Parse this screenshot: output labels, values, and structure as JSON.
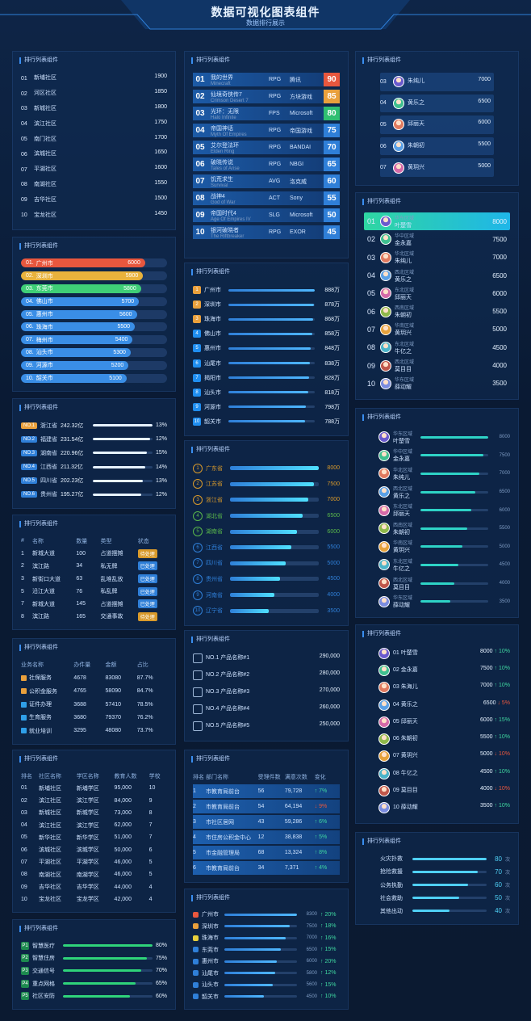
{
  "header": {
    "title": "数据可视化图表组件",
    "subtitle": "数据排行展示"
  },
  "panels": [
    {
      "kind": "rank_bar",
      "title": "排行列表组件",
      "color": "#2fd47a",
      "items": [
        {
          "rank": "01",
          "name": "新埔社区",
          "value": 1900
        },
        {
          "rank": "02",
          "name": "河区社区",
          "value": 1850
        },
        {
          "rank": "03",
          "name": "新城社区",
          "value": 1800
        },
        {
          "rank": "04",
          "name": "滨江社区",
          "value": 1750
        },
        {
          "rank": "05",
          "name": "南门社区",
          "value": 1700
        },
        {
          "rank": "06",
          "name": "滨城社区",
          "value": 1650
        },
        {
          "rank": "07",
          "name": "平湖社区",
          "value": 1600
        },
        {
          "rank": "08",
          "name": "南湖社区",
          "value": 1550
        },
        {
          "rank": "09",
          "name": "吉华社区",
          "value": 1500
        },
        {
          "rank": "10",
          "name": "宝龙社区",
          "value": 1450
        }
      ]
    },
    {
      "kind": "pill",
      "title": "排行列表组件",
      "colors": [
        "#e8573e",
        "#e9b23c",
        "#3fcf77",
        "#3a8ee6"
      ],
      "items": [
        {
          "rank": "01.",
          "name": "广州市",
          "value": 6000
        },
        {
          "rank": "02.",
          "name": "深圳市",
          "value": 5900
        },
        {
          "rank": "03.",
          "name": "东莞市",
          "value": 5800
        },
        {
          "rank": "04.",
          "name": "佛山市",
          "value": 5700
        },
        {
          "rank": "05.",
          "name": "惠州市",
          "value": 5600
        },
        {
          "rank": "06.",
          "name": "珠海市",
          "value": 5500
        },
        {
          "rank": "07.",
          "name": "梅州市",
          "value": 5400
        },
        {
          "rank": "08.",
          "name": "汕头市",
          "value": 5300
        },
        {
          "rank": "09.",
          "name": "河源市",
          "value": 5200
        },
        {
          "rank": "10.",
          "name": "韶关市",
          "value": 5100
        }
      ]
    },
    {
      "kind": "tag",
      "title": "排行列表组件",
      "colors": [
        "#e9a03c",
        "#2f7fd8"
      ],
      "items": [
        {
          "rank": "NO.1",
          "name": "浙江省",
          "value": 242.32,
          "value_label": "242.32亿",
          "share": "13%"
        },
        {
          "rank": "NO.2",
          "name": "福建省",
          "value": 231.54,
          "value_label": "231.54亿",
          "share": "12%"
        },
        {
          "rank": "NO.3",
          "name": "湖南省",
          "value": 220.96,
          "value_label": "220.96亿",
          "share": "15%"
        },
        {
          "rank": "NO.4",
          "name": "江西省",
          "value": 211.32,
          "value_label": "211.32亿",
          "share": "14%"
        },
        {
          "rank": "NO.5",
          "name": "四川省",
          "value": 202.23,
          "value_label": "202.23亿",
          "share": "13%"
        },
        {
          "rank": "NO.6",
          "name": "贵州省",
          "value": 195.27,
          "value_label": "195.27亿",
          "share": "12%"
        }
      ]
    },
    {
      "kind": "badge_table",
      "title": "排行列表组件",
      "headers": [
        "#",
        "名称",
        "数量",
        "类型",
        "状态"
      ],
      "rows": [
        [
          "1",
          "新城大道",
          "100",
          "占道摆摊",
          "待处理"
        ],
        [
          "2",
          "滨江路",
          "34",
          "私无牌",
          "已处理"
        ],
        [
          "3",
          "新街口大道",
          "63",
          "乱堆乱放",
          "已处理"
        ],
        [
          "5",
          "沿江大道",
          "76",
          "私乱牌",
          "已处理"
        ],
        [
          "7",
          "新城大道",
          "145",
          "占道摆摊",
          "已处理"
        ],
        [
          "8",
          "滨江路",
          "165",
          "交通事故",
          "待处理"
        ]
      ]
    },
    {
      "kind": "icon_table",
      "title": "排行列表组件",
      "headers": [
        "业务名称",
        "办件量",
        "金额",
        "占比"
      ],
      "rows": [
        [
          "社保服务",
          "4678",
          "83080",
          "87.7%"
        ],
        [
          "公积金服务",
          "4765",
          "58090",
          "84.7%"
        ],
        [
          "证件办理",
          "3688",
          "57410",
          "78.5%"
        ],
        [
          "生育服务",
          "3680",
          "79370",
          "76.2%"
        ],
        [
          "就业培训",
          "3295",
          "48080",
          "73.7%"
        ]
      ]
    },
    {
      "kind": "table",
      "title": "排行列表组件",
      "headers": [
        "排名",
        "社区名称",
        "学区名称",
        "教育人数",
        "学校"
      ],
      "rows": [
        [
          "01",
          "新埔社区",
          "新埔学区",
          "95,000",
          "10"
        ],
        [
          "02",
          "滨江社区",
          "滨江学区",
          "84,000",
          "9"
        ],
        [
          "03",
          "新城社区",
          "新城学区",
          "73,000",
          "8"
        ],
        [
          "04",
          "滨江社区",
          "滨江学区",
          "62,000",
          "7"
        ],
        [
          "05",
          "新华社区",
          "新华学区",
          "51,000",
          "7"
        ],
        [
          "06",
          "滨城社区",
          "滨城学区",
          "50,000",
          "6"
        ],
        [
          "07",
          "平湖社区",
          "平湖学区",
          "46,000",
          "5"
        ],
        [
          "08",
          "南湖社区",
          "南湖学区",
          "46,000",
          "5"
        ],
        [
          "09",
          "吉华社区",
          "吉华学区",
          "44,000",
          "4"
        ],
        [
          "10",
          "宝龙社区",
          "宝龙学区",
          "42,000",
          "4"
        ]
      ]
    },
    {
      "kind": "p_bar",
      "title": "排行列表组件",
      "color": "#2fd47a",
      "items": [
        {
          "rank": "P1",
          "name": "智慧医疗",
          "value": 80,
          "value_label": "80%"
        },
        {
          "rank": "P2",
          "name": "智慧住房",
          "value": 75,
          "value_label": "75%"
        },
        {
          "rank": "P3",
          "name": "交通信号",
          "value": 70,
          "value_label": "70%"
        },
        {
          "rank": "P4",
          "name": "重点网格",
          "value": 65,
          "value_label": "65%"
        },
        {
          "rank": "P5",
          "name": "社区安防",
          "value": 60,
          "value_label": "60%"
        }
      ]
    },
    {
      "kind": "game",
      "title": "排行列表组件",
      "colors": [
        "#e8573e",
        "#e9a03c",
        "#2fbf71",
        "#2f7fd8"
      ],
      "items": [
        {
          "rank": "01",
          "name": "我的世界",
          "sub": "Minecraft",
          "genre": "RPG",
          "maker": "腾讯",
          "value": 90
        },
        {
          "rank": "02",
          "name": "仙境奇侠传7",
          "sub": "Crimson Desert 7",
          "genre": "RPG",
          "maker": "方块游戏",
          "value": 85
        },
        {
          "rank": "03",
          "name": "光环：无限",
          "sub": "Halo Infinite",
          "genre": "FPS",
          "maker": "Microsoft",
          "value": 80
        },
        {
          "rank": "04",
          "name": "帝国神话",
          "sub": "Myth Of Empires",
          "genre": "RPG",
          "maker": "帝国游戏",
          "value": 75
        },
        {
          "rank": "05",
          "name": "艾尔登法环",
          "sub": "Elden Ring",
          "genre": "RPG",
          "maker": "BANDAI",
          "value": 70
        },
        {
          "rank": "06",
          "name": "破晓传说",
          "sub": "Tales of Arise",
          "genre": "RPG",
          "maker": "NBGI",
          "value": 65
        },
        {
          "rank": "07",
          "name": "饥荒求生",
          "sub": "Survival",
          "genre": "AVG",
          "maker": "洛克威",
          "value": 60
        },
        {
          "rank": "08",
          "name": "战神4",
          "sub": "God of War",
          "genre": "ACT",
          "maker": "Sony",
          "value": 55
        },
        {
          "rank": "09",
          "name": "帝国时代4",
          "sub": "Age Of Empires IV",
          "genre": "SLG",
          "maker": "Microsoft",
          "value": 50
        },
        {
          "rank": "10",
          "name": "银河破晓者",
          "sub": "The Riftbreaker",
          "genre": "RPG",
          "maker": "EXOR",
          "value": 45
        }
      ]
    },
    {
      "kind": "city_bar",
      "title": "排行列表组件",
      "colors": [
        "#e9a03c",
        "#1f8ef1"
      ],
      "items": [
        {
          "rank": "1",
          "name": "广州市",
          "value": 888,
          "value_label": "888万"
        },
        {
          "rank": "2",
          "name": "深圳市",
          "value": 878,
          "value_label": "878万"
        },
        {
          "rank": "3",
          "name": "珠海市",
          "value": 868,
          "value_label": "868万"
        },
        {
          "rank": "4",
          "name": "佛山市",
          "value": 858,
          "value_label": "858万"
        },
        {
          "rank": "5",
          "name": "惠州市",
          "value": 848,
          "value_label": "848万"
        },
        {
          "rank": "6",
          "name": "汕尾市",
          "value": 838,
          "value_label": "838万"
        },
        {
          "rank": "7",
          "name": "揭阳市",
          "value": 828,
          "value_label": "828万"
        },
        {
          "rank": "8",
          "name": "汕头市",
          "value": 818,
          "value_label": "818万"
        },
        {
          "rank": "9",
          "name": "河源市",
          "value": 798,
          "value_label": "798万"
        },
        {
          "rank": "10",
          "name": "韶关市",
          "value": 788,
          "value_label": "788万"
        }
      ]
    },
    {
      "kind": "circle_bar",
      "title": "排行列表组件",
      "colors": [
        "#d99a2b",
        "#5ab84b",
        "#2f7fd8"
      ],
      "items": [
        {
          "rank": "1",
          "name": "广东省",
          "value": 8000
        },
        {
          "rank": "2",
          "name": "江苏省",
          "value": 7500
        },
        {
          "rank": "3",
          "name": "浙江省",
          "value": 7000
        },
        {
          "rank": "4",
          "name": "湖北省",
          "value": 6500
        },
        {
          "rank": "5",
          "name": "湖南省",
          "value": 6000
        },
        {
          "rank": "6",
          "name": "江西省",
          "value": 5500
        },
        {
          "rank": "7",
          "name": "四川省",
          "value": 5000
        },
        {
          "rank": "8",
          "name": "贵州省",
          "value": 4500
        },
        {
          "rank": "9",
          "name": "河南省",
          "value": 4000
        },
        {
          "rank": "10",
          "name": "辽宁省",
          "value": 3500
        }
      ]
    },
    {
      "kind": "product",
      "title": "排行列表组件",
      "color": "#52e6b4",
      "items": [
        {
          "rank": "NO.1",
          "name": "产品名称#1",
          "value": 290000,
          "value_label": "290,000"
        },
        {
          "rank": "NO.2",
          "name": "产品名称#2",
          "value": 280000,
          "value_label": "280,000"
        },
        {
          "rank": "NO.3",
          "name": "产品名称#3",
          "value": 270000,
          "value_label": "270,000"
        },
        {
          "rank": "NO.4",
          "name": "产品名称#4",
          "value": 260000,
          "value_label": "260,000"
        },
        {
          "rank": "NO.5",
          "name": "产品名称#5",
          "value": 250000,
          "value_label": "250,000"
        }
      ]
    },
    {
      "kind": "strip_table",
      "title": "排行列表组件",
      "headers": [
        "排名",
        "部门名称",
        "受理件数",
        "满意次数",
        "变化"
      ],
      "rows": [
        [
          "1",
          "市教育局前台",
          "56",
          "79,728",
          "↑ 7%"
        ],
        [
          "2",
          "市教育局前台",
          "54",
          "64,194",
          "↓ 9%"
        ],
        [
          "3",
          "市社区居网",
          "43",
          "59,286",
          "↑ 6%"
        ],
        [
          "4",
          "市住房公积金中心",
          "12",
          "38,838",
          "↑ 5%"
        ],
        [
          "5",
          "市金融管理局",
          "68",
          "13,324",
          "↑ 8%"
        ],
        [
          "6",
          "市教育局前台",
          "34",
          "7,371",
          "↑ 4%"
        ]
      ]
    },
    {
      "kind": "change_bar",
      "title": "排行列表组件",
      "colors": [
        "#e8573e",
        "#e9a03c",
        "#e9d03c",
        "#2f7fd8"
      ],
      "items": [
        {
          "name": "广州市",
          "value": 8300,
          "change": "↑ 20%"
        },
        {
          "name": "深圳市",
          "value": 7500,
          "change": "↑ 18%"
        },
        {
          "name": "珠海市",
          "value": 7000,
          "change": "↑ 16%"
        },
        {
          "name": "东莞市",
          "value": 6500,
          "change": "↑ 15%"
        },
        {
          "name": "惠州市",
          "value": 6000,
          "change": "↑ 20%"
        },
        {
          "name": "汕尾市",
          "value": 5800,
          "change": "↑ 12%"
        },
        {
          "name": "汕头市",
          "value": 5600,
          "change": "↑ 15%"
        },
        {
          "name": "韶关市",
          "value": 4500,
          "change": "↑ 10%"
        }
      ]
    },
    {
      "kind": "avatar",
      "title": "排行列表组件",
      "items": [
        {
          "rank": "03",
          "name": "朱纯儿",
          "value": 7000
        },
        {
          "rank": "04",
          "name": "黄乐之",
          "value": 6500
        },
        {
          "rank": "05",
          "name": "邱丽天",
          "value": 6000
        },
        {
          "rank": "06",
          "name": "朱朝初",
          "value": 5500
        },
        {
          "rank": "07",
          "name": "黄玥兴",
          "value": 5000
        }
      ]
    },
    {
      "kind": "avatar2",
      "title": "排行列表组件",
      "items": [
        {
          "rank": "01",
          "region": "华东区域",
          "name": "叶楚雪",
          "value": 8000
        },
        {
          "rank": "02",
          "region": "华中区域",
          "name": "金永嘉",
          "value": 7500
        },
        {
          "rank": "03",
          "region": "华北区域",
          "name": "朱纯儿",
          "value": 7000
        },
        {
          "rank": "04",
          "region": "西北区域",
          "name": "黄乐之",
          "value": 6500
        },
        {
          "rank": "05",
          "region": "东北区域",
          "name": "邱丽天",
          "value": 6000
        },
        {
          "rank": "06",
          "region": "西南区域",
          "name": "朱朝初",
          "value": 5500
        },
        {
          "rank": "07",
          "region": "华南区域",
          "name": "黄玥兴",
          "value": 5000
        },
        {
          "rank": "08",
          "region": "东北区域",
          "name": "牛亿之",
          "value": 4500
        },
        {
          "rank": "09",
          "region": "西北区域",
          "name": "莫目目",
          "value": 4000
        },
        {
          "rank": "10",
          "region": "华东区域",
          "name": "薛动耀",
          "value": 3500
        }
      ]
    },
    {
      "kind": "avatar3",
      "title": "排行列表组件",
      "color": "#2ed3c6",
      "items": [
        {
          "region": "华东区域",
          "name": "叶楚雪",
          "value": 8000
        },
        {
          "region": "华中区域",
          "name": "金永嘉",
          "value": 7500
        },
        {
          "region": "华北区域",
          "name": "朱纯儿",
          "value": 7000
        },
        {
          "region": "西北区域",
          "name": "黄乐之",
          "value": 6500
        },
        {
          "region": "东北区域",
          "name": "邱丽天",
          "value": 6000
        },
        {
          "region": "西南区域",
          "name": "朱朝初",
          "value": 5500
        },
        {
          "region": "华南区域",
          "name": "黄玥兴",
          "value": 5000
        },
        {
          "region": "东北区域",
          "name": "牛亿之",
          "value": 4500
        },
        {
          "region": "西北区域",
          "name": "莫目目",
          "value": 4000
        },
        {
          "region": "华东区域",
          "name": "薛动耀",
          "value": 3500
        }
      ]
    },
    {
      "kind": "avatar4",
      "title": "排行列表组件",
      "colors": [
        "#e8573e",
        "#e9b23c",
        "#3fcf77",
        "#3a8ee6"
      ],
      "items": [
        {
          "rank": "01",
          "name": "叶楚雪",
          "value": 8000,
          "change": "↑ 10%"
        },
        {
          "rank": "02",
          "name": "金永嘉",
          "value": 7500,
          "change": "↑ 10%"
        },
        {
          "rank": "03",
          "name": "朱海儿",
          "value": 7000,
          "change": "↑ 10%"
        },
        {
          "rank": "04",
          "name": "黄乐之",
          "value": 6500,
          "change": "↓ 5%"
        },
        {
          "rank": "05",
          "name": "邱丽天",
          "value": 6000,
          "change": "↑ 15%"
        },
        {
          "rank": "06",
          "name": "朱朝初",
          "value": 5500,
          "change": "↑ 10%"
        },
        {
          "rank": "07",
          "name": "黄玥兴",
          "value": 5000,
          "change": "↓ 10%"
        },
        {
          "rank": "08",
          "name": "牛亿之",
          "value": 4500,
          "change": "↑ 10%"
        },
        {
          "rank": "09",
          "name": "莫目目",
          "value": 4000,
          "change": "↓ 10%"
        },
        {
          "rank": "10",
          "name": "薛动耀",
          "value": 3500,
          "change": "↑ 10%"
        }
      ]
    },
    {
      "kind": "count",
      "title": "排行列表组件",
      "unit": "次",
      "color": "#4fd0f5",
      "items": [
        {
          "name": "火灾扑救",
          "value": 80
        },
        {
          "name": "抢险救援",
          "value": 70
        },
        {
          "name": "公务执勤",
          "value": 60
        },
        {
          "name": "社会救助",
          "value": 50
        },
        {
          "name": "其他出动",
          "value": 40
        }
      ]
    }
  ]
}
